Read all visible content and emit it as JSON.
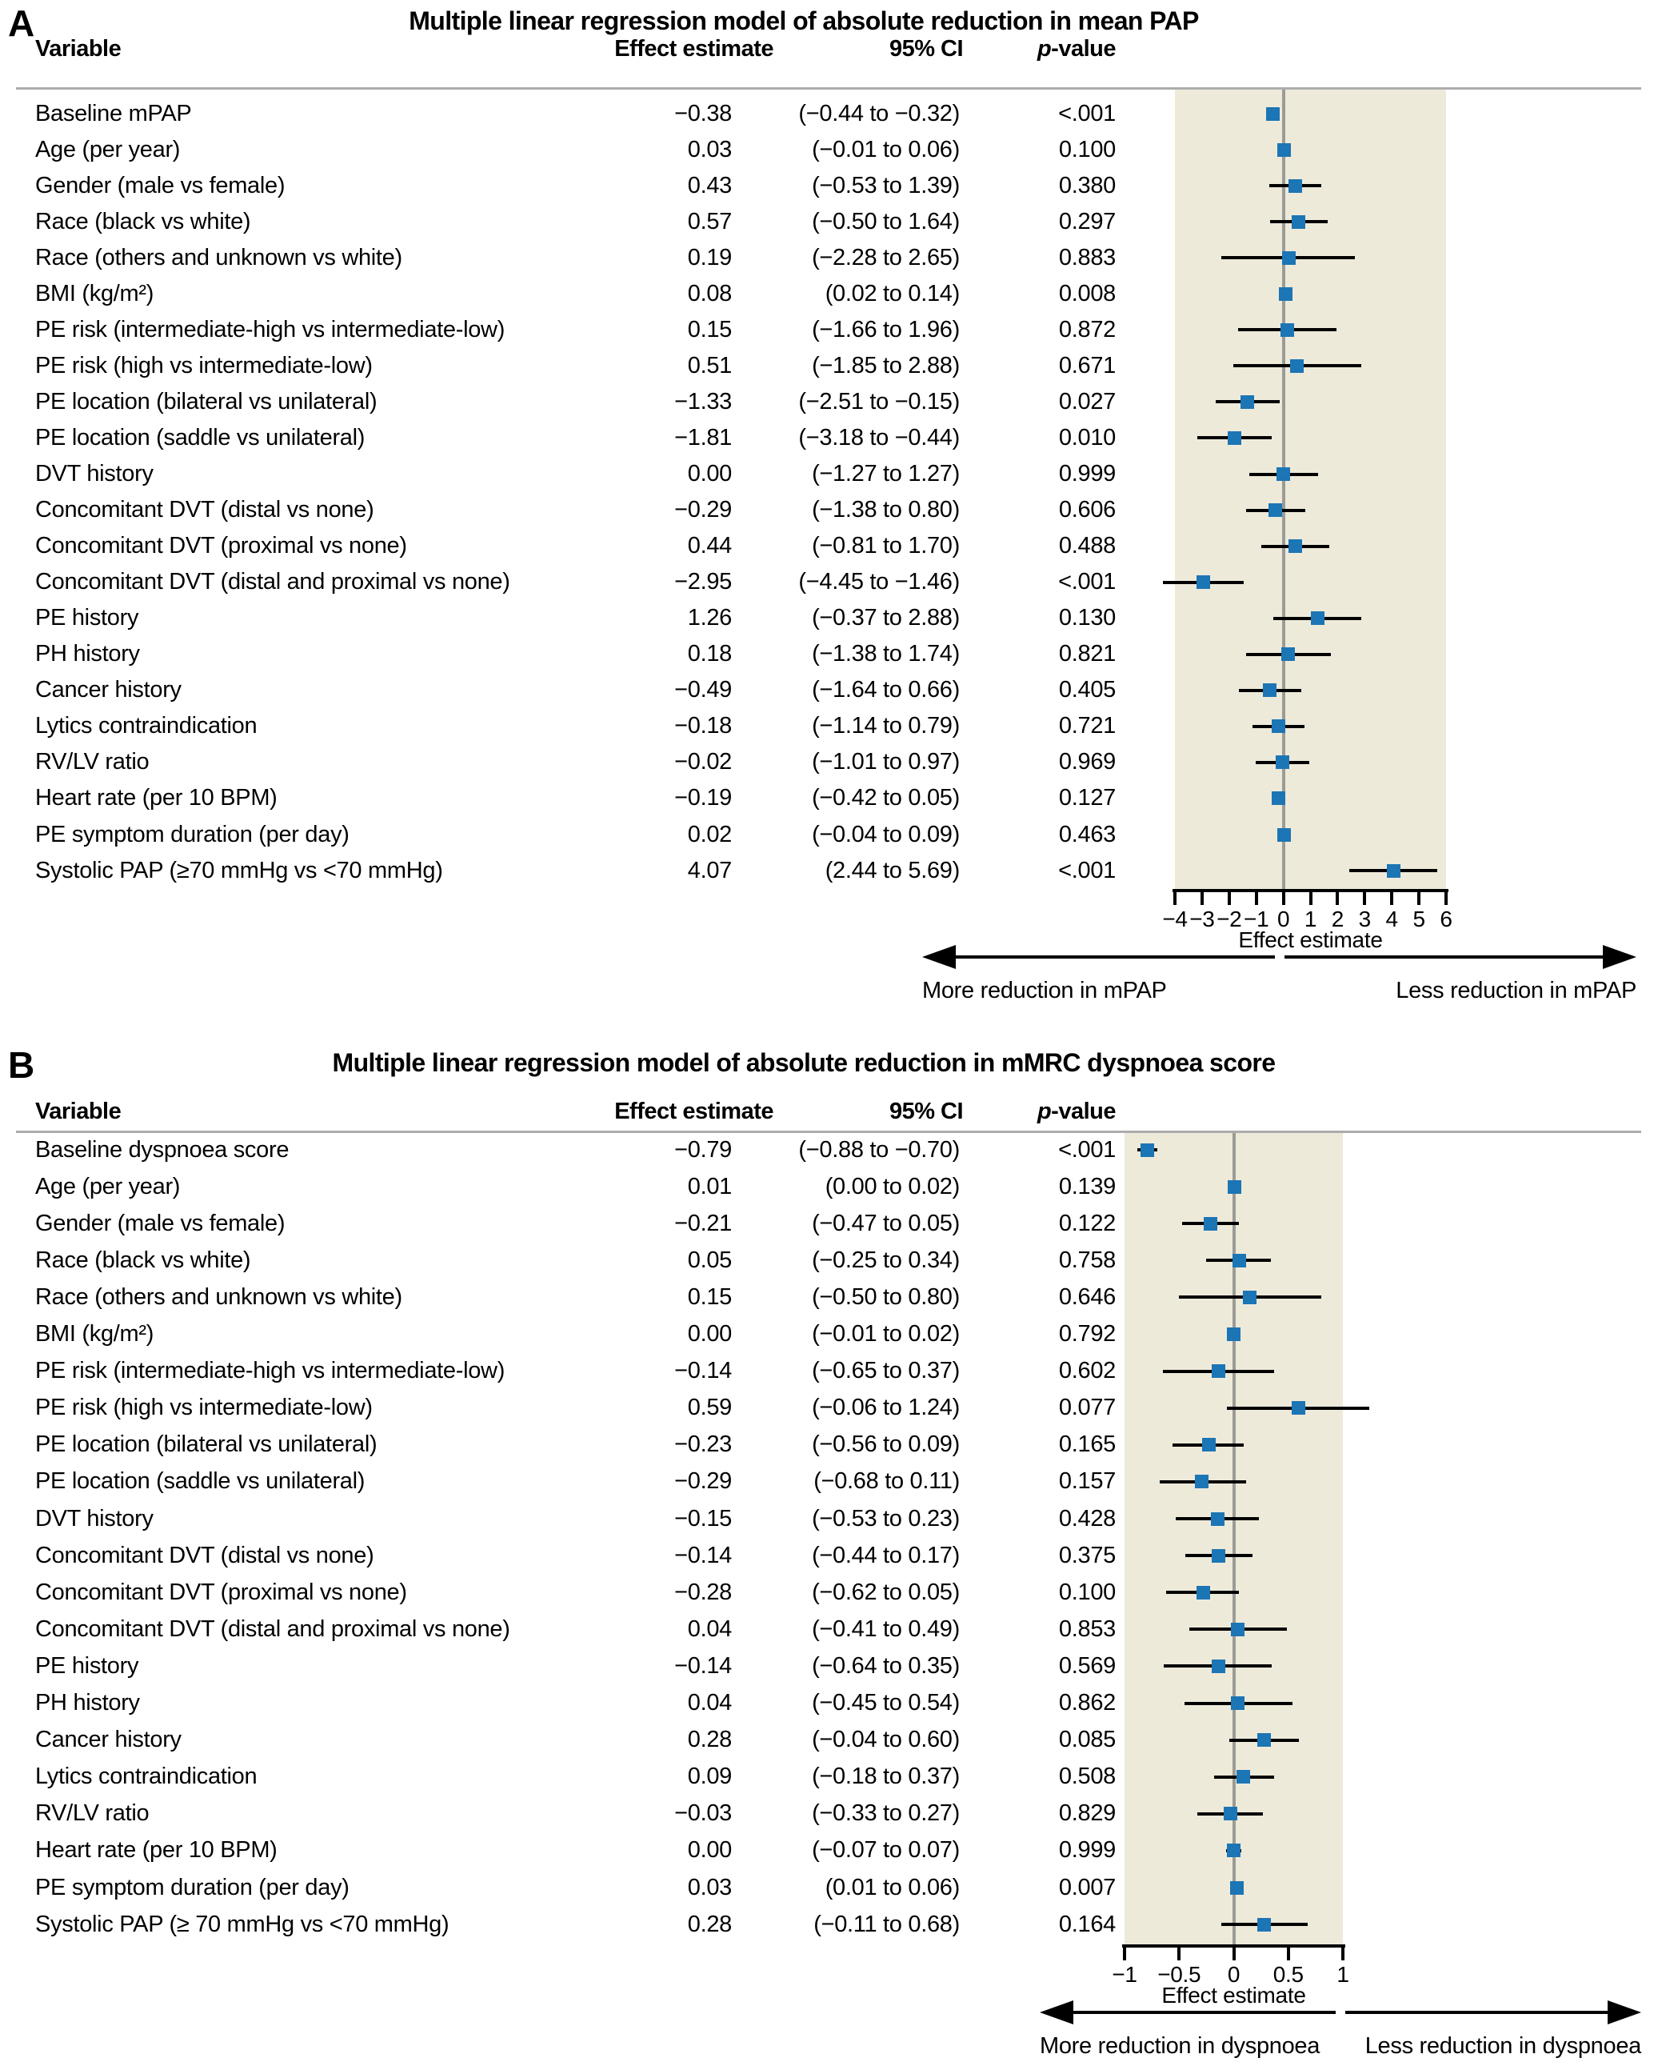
{
  "colors": {
    "marker": "#1C75B4",
    "band": "#EEEADA",
    "zero_line": "#9C9C96",
    "rule": "#ACACAC",
    "error_bar": "#000000"
  },
  "chart_data": [
    {
      "type": "forest",
      "panel": "A",
      "title": "Multiple linear regression model of absolute reduction in mean PAP",
      "columns": {
        "variable": "Variable",
        "effect": "Effect estimate",
        "ci": "95% CI",
        "p_prefix": "p",
        "p_suffix": "-value"
      },
      "axis": {
        "label": "Effect estimate",
        "min": -4,
        "max": 6,
        "ticks": [
          -4,
          -3,
          -2,
          -1,
          0,
          1,
          2,
          3,
          4,
          5,
          6
        ],
        "tick_labels": [
          "−4",
          "−3",
          "−2",
          "−1",
          "0",
          "1",
          "2",
          "3",
          "4",
          "5",
          "6"
        ]
      },
      "arrow": {
        "left": "More reduction in mPAP",
        "right": "Less reduction in mPAP"
      },
      "rows": [
        {
          "variable": "Baseline mPAP",
          "effect": "−0.38",
          "ci": "(−0.44 to −0.32)",
          "p": "<.001",
          "est": -0.38,
          "lo": -0.44,
          "hi": -0.32
        },
        {
          "variable": "Age (per year)",
          "effect": "0.03",
          "ci": "(−0.01 to 0.06)",
          "p": "0.100",
          "est": 0.03,
          "lo": -0.01,
          "hi": 0.06
        },
        {
          "variable": "Gender (male vs female)",
          "effect": "0.43",
          "ci": "(−0.53 to 1.39)",
          "p": "0.380",
          "est": 0.43,
          "lo": -0.53,
          "hi": 1.39
        },
        {
          "variable": "Race (black vs white)",
          "effect": "0.57",
          "ci": "(−0.50 to 1.64)",
          "p": "0.297",
          "est": 0.57,
          "lo": -0.5,
          "hi": 1.64
        },
        {
          "variable": "Race (others and unknown vs white)",
          "effect": "0.19",
          "ci": "(−2.28 to 2.65)",
          "p": "0.883",
          "est": 0.19,
          "lo": -2.28,
          "hi": 2.65
        },
        {
          "variable": "BMI (kg/m²)",
          "effect": "0.08",
          "ci": "(0.02 to 0.14)",
          "p": "0.008",
          "est": 0.08,
          "lo": 0.02,
          "hi": 0.14
        },
        {
          "variable": "PE risk (intermediate-high vs intermediate-low)",
          "effect": "0.15",
          "ci": "(−1.66 to 1.96)",
          "p": "0.872",
          "est": 0.15,
          "lo": -1.66,
          "hi": 1.96
        },
        {
          "variable": "PE risk (high vs intermediate-low)",
          "effect": "0.51",
          "ci": "(−1.85 to 2.88)",
          "p": "0.671",
          "est": 0.51,
          "lo": -1.85,
          "hi": 2.88
        },
        {
          "variable": "PE location (bilateral vs unilateral)",
          "effect": "−1.33",
          "ci": "(−2.51 to −0.15)",
          "p": "0.027",
          "est": -1.33,
          "lo": -2.51,
          "hi": -0.15
        },
        {
          "variable": "PE location (saddle vs unilateral)",
          "effect": "−1.81",
          "ci": "(−3.18 to −0.44)",
          "p": "0.010",
          "est": -1.81,
          "lo": -3.18,
          "hi": -0.44
        },
        {
          "variable": "DVT history",
          "effect": "0.00",
          "ci": "(−1.27 to 1.27)",
          "p": "0.999",
          "est": 0.0,
          "lo": -1.27,
          "hi": 1.27
        },
        {
          "variable": "Concomitant DVT (distal vs none)",
          "effect": "−0.29",
          "ci": "(−1.38 to 0.80)",
          "p": "0.606",
          "est": -0.29,
          "lo": -1.38,
          "hi": 0.8
        },
        {
          "variable": "Concomitant DVT (proximal vs none)",
          "effect": "0.44",
          "ci": "(−0.81 to 1.70)",
          "p": "0.488",
          "est": 0.44,
          "lo": -0.81,
          "hi": 1.7
        },
        {
          "variable": "Concomitant DVT (distal and proximal vs none)",
          "effect": "−2.95",
          "ci": "(−4.45 to −1.46)",
          "p": "<.001",
          "est": -2.95,
          "lo": -4.45,
          "hi": -1.46
        },
        {
          "variable": "PE history",
          "effect": "1.26",
          "ci": "(−0.37 to 2.88)",
          "p": "0.130",
          "est": 1.26,
          "lo": -0.37,
          "hi": 2.88
        },
        {
          "variable": "PH history",
          "effect": "0.18",
          "ci": "(−1.38 to 1.74)",
          "p": "0.821",
          "est": 0.18,
          "lo": -1.38,
          "hi": 1.74
        },
        {
          "variable": "Cancer history",
          "effect": "−0.49",
          "ci": "(−1.64 to 0.66)",
          "p": "0.405",
          "est": -0.49,
          "lo": -1.64,
          "hi": 0.66
        },
        {
          "variable": "Lytics contraindication",
          "effect": "−0.18",
          "ci": "(−1.14 to 0.79)",
          "p": "0.721",
          "est": -0.18,
          "lo": -1.14,
          "hi": 0.79
        },
        {
          "variable": "RV/LV ratio",
          "effect": "−0.02",
          "ci": "(−1.01 to 0.97)",
          "p": "0.969",
          "est": -0.02,
          "lo": -1.01,
          "hi": 0.97
        },
        {
          "variable": "Heart rate (per 10 BPM)",
          "effect": "−0.19",
          "ci": "(−0.42 to 0.05)",
          "p": "0.127",
          "est": -0.19,
          "lo": -0.42,
          "hi": 0.05
        },
        {
          "variable": "PE symptom duration (per day)",
          "effect": "0.02",
          "ci": "(−0.04 to 0.09)",
          "p": "0.463",
          "est": 0.02,
          "lo": -0.04,
          "hi": 0.09
        },
        {
          "variable": "Systolic PAP (≥70 mmHg vs <70 mmHg)",
          "effect": "4.07",
          "ci": "(2.44 to 5.69)",
          "p": "<.001",
          "est": 4.07,
          "lo": 2.44,
          "hi": 5.69
        }
      ]
    },
    {
      "type": "forest",
      "panel": "B",
      "title": "Multiple linear regression model of absolute reduction in mMRC dyspnoea score",
      "columns": {
        "variable": "Variable",
        "effect": "Effect estimate",
        "ci": "95% CI",
        "p_prefix": "p",
        "p_suffix": "-value"
      },
      "axis": {
        "label": "Effect estimate",
        "min": -1,
        "max": 1,
        "ticks": [
          -1,
          -0.5,
          0,
          0.5,
          1
        ],
        "tick_labels": [
          "−1",
          "−0.5",
          "0",
          "0.5",
          "1"
        ]
      },
      "arrow": {
        "left": "More reduction in dyspnoea",
        "right": "Less reduction in dyspnoea"
      },
      "rows": [
        {
          "variable": "Baseline dyspnoea score",
          "effect": "−0.79",
          "ci": "(−0.88 to −0.70)",
          "p": "<.001",
          "est": -0.79,
          "lo": -0.88,
          "hi": -0.7
        },
        {
          "variable": "Age (per year)",
          "effect": "0.01",
          "ci": "(0.00 to 0.02)",
          "p": "0.139",
          "est": 0.01,
          "lo": 0.0,
          "hi": 0.02
        },
        {
          "variable": "Gender (male vs female)",
          "effect": "−0.21",
          "ci": "(−0.47 to 0.05)",
          "p": "0.122",
          "est": -0.21,
          "lo": -0.47,
          "hi": 0.05
        },
        {
          "variable": "Race (black vs white)",
          "effect": "0.05",
          "ci": "(−0.25 to 0.34)",
          "p": "0.758",
          "est": 0.05,
          "lo": -0.25,
          "hi": 0.34
        },
        {
          "variable": "Race (others and unknown vs white)",
          "effect": "0.15",
          "ci": "(−0.50 to 0.80)",
          "p": "0.646",
          "est": 0.15,
          "lo": -0.5,
          "hi": 0.8
        },
        {
          "variable": "BMI (kg/m²)",
          "effect": "0.00",
          "ci": "(−0.01 to 0.02)",
          "p": "0.792",
          "est": 0.0,
          "lo": -0.01,
          "hi": 0.02
        },
        {
          "variable": "PE risk (intermediate-high vs intermediate-low)",
          "effect": "−0.14",
          "ci": "(−0.65 to 0.37)",
          "p": "0.602",
          "est": -0.14,
          "lo": -0.65,
          "hi": 0.37
        },
        {
          "variable": "PE risk (high vs intermediate-low)",
          "effect": "0.59",
          "ci": "(−0.06 to 1.24)",
          "p": "0.077",
          "est": 0.59,
          "lo": -0.06,
          "hi": 1.24
        },
        {
          "variable": "PE location (bilateral vs unilateral)",
          "effect": "−0.23",
          "ci": "(−0.56 to 0.09)",
          "p": "0.165",
          "est": -0.23,
          "lo": -0.56,
          "hi": 0.09
        },
        {
          "variable": "PE location (saddle vs unilateral)",
          "effect": "−0.29",
          "ci": "(−0.68 to 0.11)",
          "p": "0.157",
          "est": -0.29,
          "lo": -0.68,
          "hi": 0.11
        },
        {
          "variable": "DVT history",
          "effect": "−0.15",
          "ci": "(−0.53 to 0.23)",
          "p": "0.428",
          "est": -0.15,
          "lo": -0.53,
          "hi": 0.23
        },
        {
          "variable": "Concomitant DVT (distal vs none)",
          "effect": "−0.14",
          "ci": "(−0.44 to 0.17)",
          "p": "0.375",
          "est": -0.14,
          "lo": -0.44,
          "hi": 0.17
        },
        {
          "variable": "Concomitant DVT (proximal vs none)",
          "effect": "−0.28",
          "ci": "(−0.62 to 0.05)",
          "p": "0.100",
          "est": -0.28,
          "lo": -0.62,
          "hi": 0.05
        },
        {
          "variable": "Concomitant DVT (distal and proximal vs none)",
          "effect": "0.04",
          "ci": "(−0.41 to 0.49)",
          "p": "0.853",
          "est": 0.04,
          "lo": -0.41,
          "hi": 0.49
        },
        {
          "variable": "PE history",
          "effect": "−0.14",
          "ci": "(−0.64 to 0.35)",
          "p": "0.569",
          "est": -0.14,
          "lo": -0.64,
          "hi": 0.35
        },
        {
          "variable": "PH history",
          "effect": "0.04",
          "ci": "(−0.45 to 0.54)",
          "p": "0.862",
          "est": 0.04,
          "lo": -0.45,
          "hi": 0.54
        },
        {
          "variable": "Cancer history",
          "effect": "0.28",
          "ci": "(−0.04 to 0.60)",
          "p": "0.085",
          "est": 0.28,
          "lo": -0.04,
          "hi": 0.6
        },
        {
          "variable": "Lytics contraindication",
          "effect": "0.09",
          "ci": "(−0.18 to 0.37)",
          "p": "0.508",
          "est": 0.09,
          "lo": -0.18,
          "hi": 0.37
        },
        {
          "variable": "RV/LV ratio",
          "effect": "−0.03",
          "ci": "(−0.33 to 0.27)",
          "p": "0.829",
          "est": -0.03,
          "lo": -0.33,
          "hi": 0.27
        },
        {
          "variable": "Heart rate (per 10 BPM)",
          "effect": "0.00",
          "ci": "(−0.07 to 0.07)",
          "p": "0.999",
          "est": 0.0,
          "lo": -0.07,
          "hi": 0.07
        },
        {
          "variable": "PE symptom duration (per day)",
          "effect": "0.03",
          "ci": "(0.01 to 0.06)",
          "p": "0.007",
          "est": 0.03,
          "lo": 0.01,
          "hi": 0.06
        },
        {
          "variable": "Systolic PAP (≥ 70 mmHg vs <70 mmHg)",
          "effect": "0.28",
          "ci": "(−0.11 to 0.68)",
          "p": "0.164",
          "est": 0.28,
          "lo": -0.11,
          "hi": 0.68
        }
      ]
    }
  ]
}
